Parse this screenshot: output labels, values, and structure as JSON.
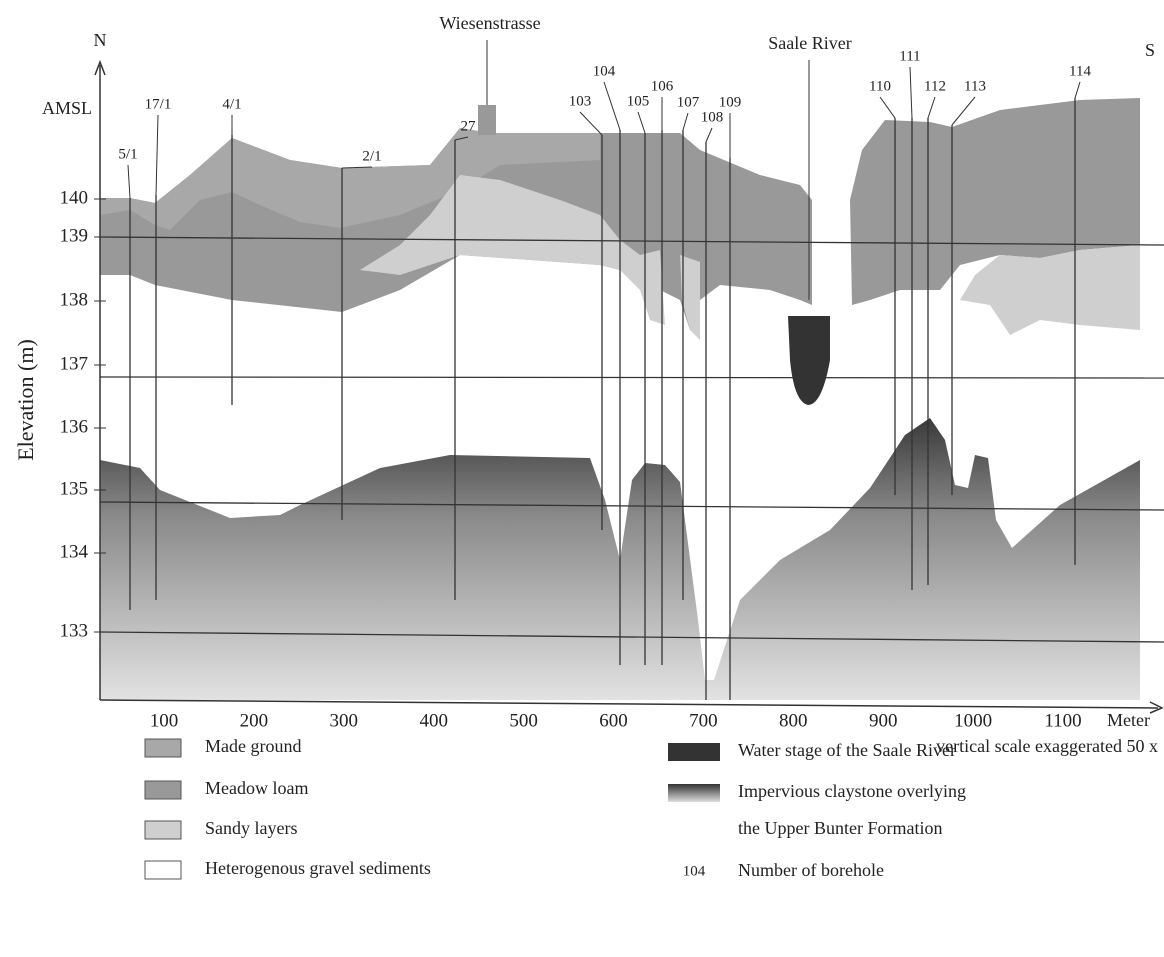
{
  "axis": {
    "north": "N",
    "south": "S",
    "datum": "AMSL",
    "y_title": "Elevation (m)",
    "y_ticks": [
      "140",
      "139",
      "138",
      "137",
      "136",
      "135",
      "134",
      "133"
    ],
    "x_ticks": [
      "100",
      "200",
      "300",
      "400",
      "500",
      "600",
      "700",
      "800",
      "900",
      "1000",
      "1100"
    ],
    "x_unit": "Meter",
    "note": "vertical scale exaggerated 50 x"
  },
  "landmarks": [
    "Wiesenstrasse",
    "Saale River"
  ],
  "boreholes": [
    "5/1",
    "17/1",
    "4/1",
    "2/1",
    "27",
    "103",
    "104",
    "105",
    "106",
    "107",
    "108",
    "109",
    "110",
    "111",
    "112",
    "113",
    "114"
  ],
  "legend": {
    "left": [
      "Made ground",
      "Meadow loam",
      "Sandy layers",
      "Heterogenous gravel sediments"
    ],
    "right": [
      {
        "lines": [
          "Water stage of the Saale River"
        ]
      },
      {
        "lines": [
          "Impervious claystone overlying",
          "the Upper Bunter Formation"
        ]
      },
      {
        "sample": "104",
        "lines": [
          "Number of borehole"
        ]
      }
    ]
  }
}
